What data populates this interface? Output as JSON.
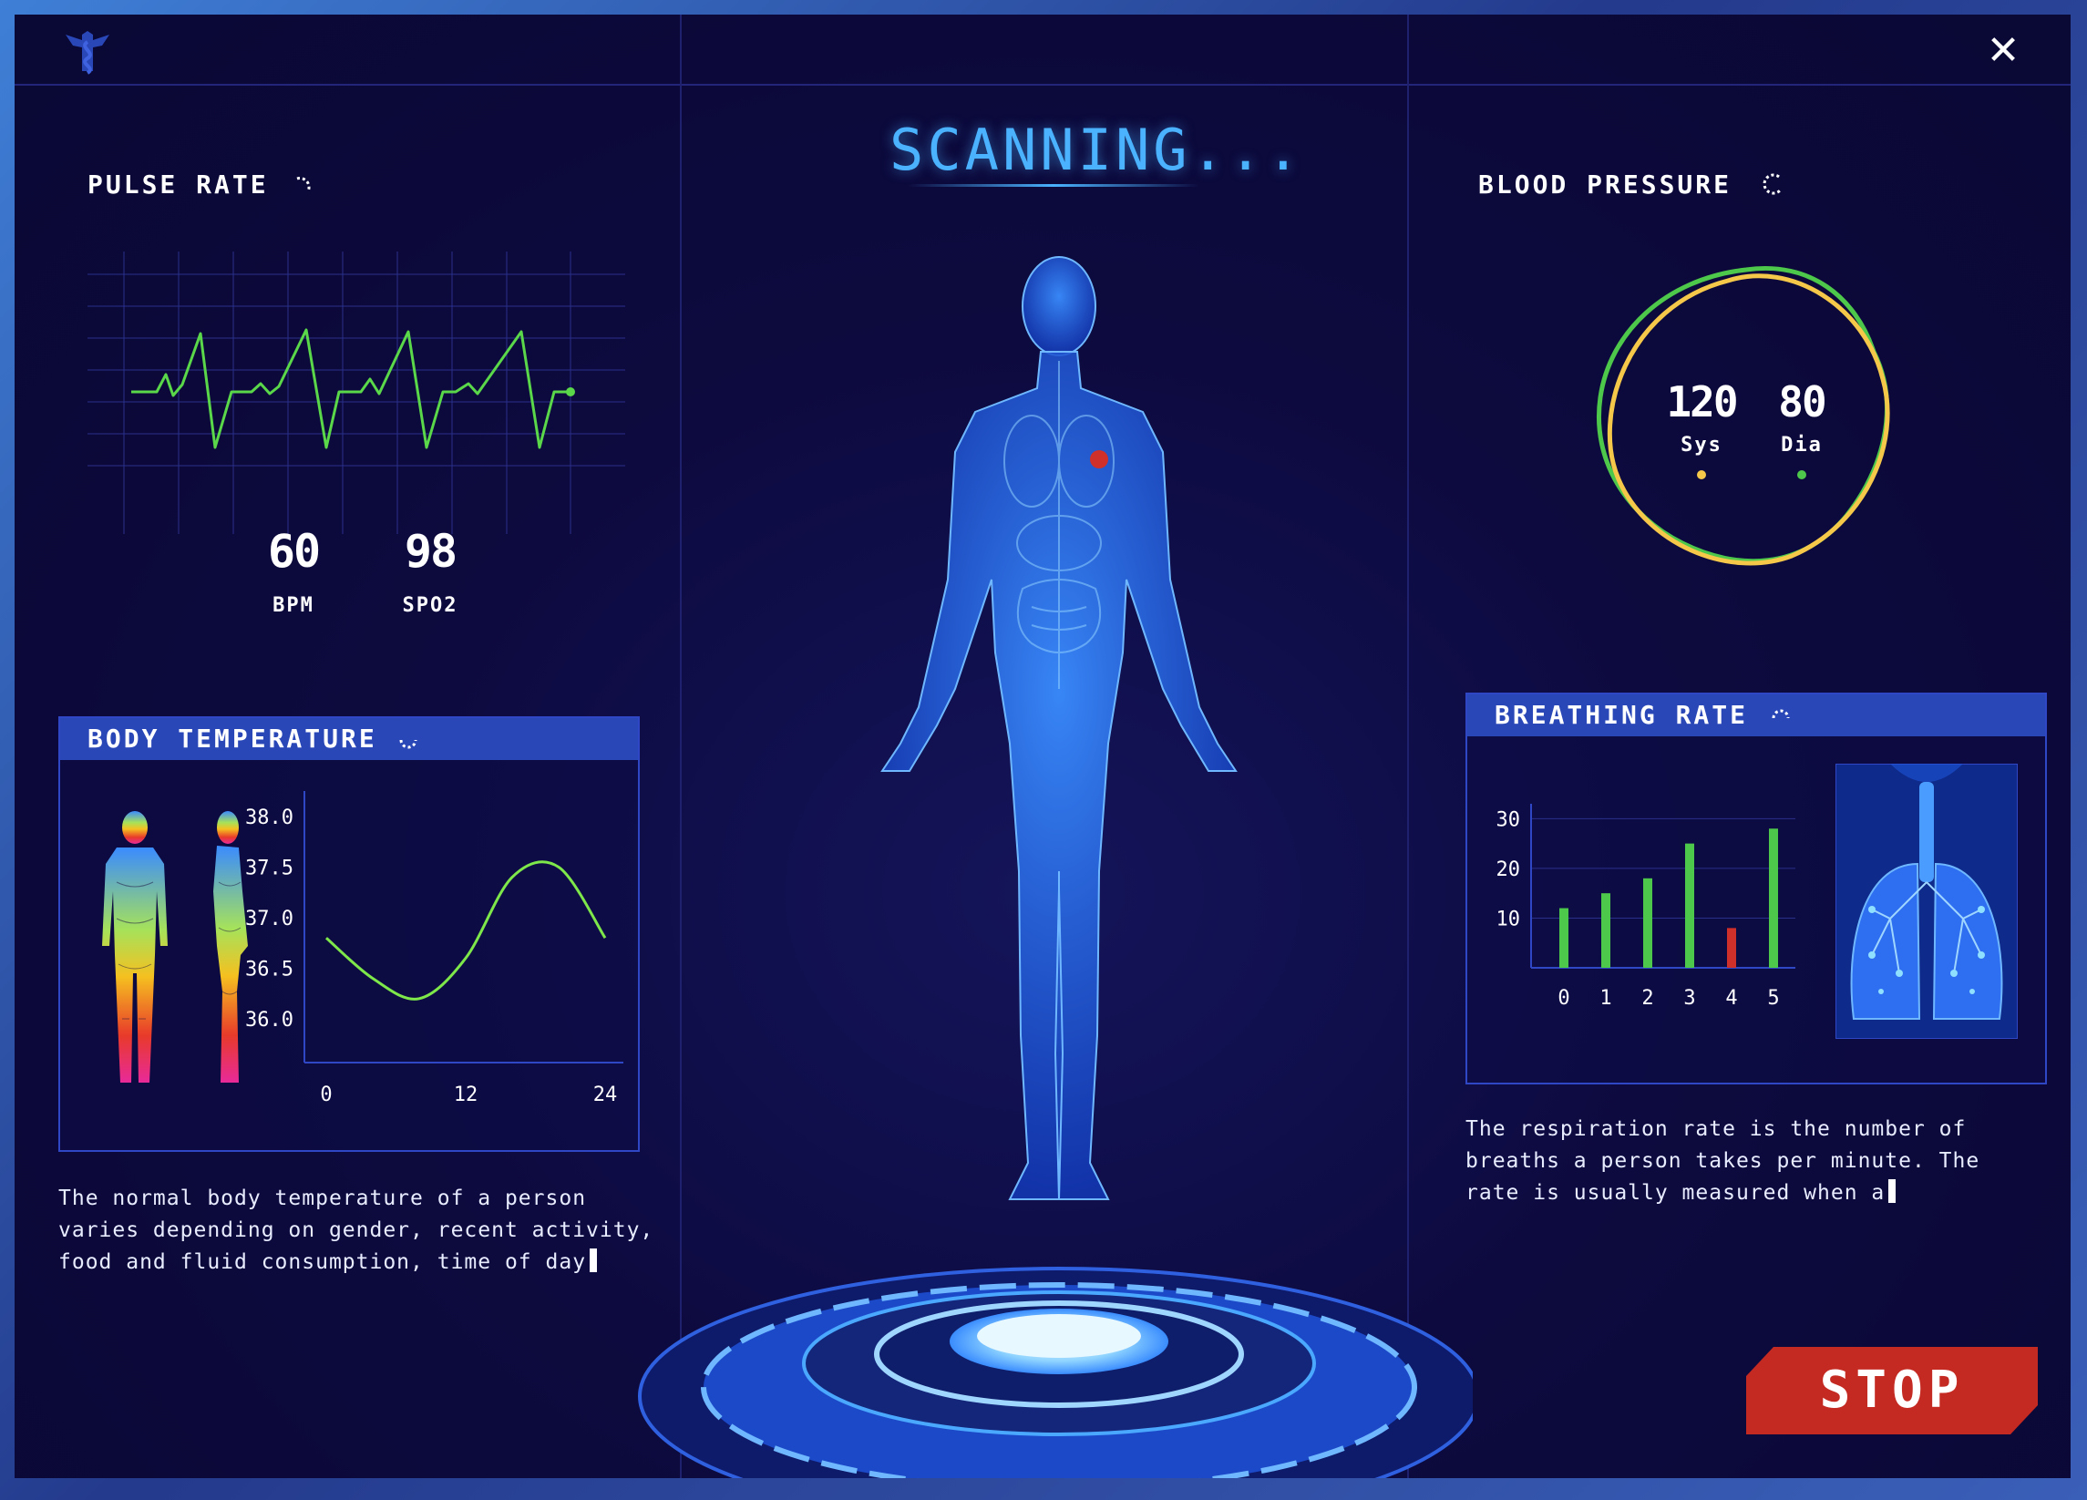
{
  "header": {
    "logo_icon": "caduceus-icon",
    "close_icon": "close-icon",
    "close_label": "✕"
  },
  "scan": {
    "status": "SCANNING..."
  },
  "pulse": {
    "title": "PULSE RATE",
    "bpm_value": "60",
    "bpm_label": "BPM",
    "spo2_value": "98",
    "spo2_label": "SPO2"
  },
  "temperature": {
    "title": "BODY TEMPERATURE",
    "y_ticks": [
      "38.0",
      "37.5",
      "37.0",
      "36.5",
      "36.0"
    ],
    "x_ticks": [
      "0",
      "12",
      "24"
    ],
    "description": "The normal body temperature of a person varies depending on gender, recent activity, food and fluid consumption, time of day"
  },
  "pressure": {
    "title": "BLOOD PRESSURE",
    "sys_value": "120",
    "sys_label": "Sys",
    "dia_value": "80",
    "dia_label": "Dia",
    "sys_color": "#f5c84a",
    "dia_color": "#4ec84a"
  },
  "breathing": {
    "title": "BREATHING RATE",
    "description": "The respiration rate is the number of breaths a person takes per minute. The rate is usually measured when a"
  },
  "stop": {
    "label": "STOP",
    "color": "#c42a22"
  },
  "chart_data": [
    {
      "type": "line",
      "x": [
        0,
        4,
        8,
        12,
        16,
        20,
        24
      ],
      "y": [
        36.8,
        36.4,
        36.2,
        36.6,
        37.4,
        37.5,
        36.8
      ],
      "xlabel": "",
      "ylabel": "",
      "x_ticks": [
        "0",
        "12",
        "24"
      ],
      "y_ticks": [
        "38.0",
        "37.5",
        "37.0",
        "36.5",
        "36.0"
      ],
      "xlim": [
        0,
        24
      ],
      "ylim": [
        36.0,
        38.0
      ],
      "grid": false,
      "color": "#7ee84a"
    },
    {
      "type": "bar",
      "categories": [
        "0",
        "1",
        "2",
        "3",
        "4",
        "5"
      ],
      "values": [
        12,
        15,
        18,
        25,
        8,
        28
      ],
      "colors": [
        "#4ec84a",
        "#4ec84a",
        "#4ec84a",
        "#4ec84a",
        "#d0302a",
        "#4ec84a"
      ],
      "y_ticks": [
        "30",
        "20",
        "10"
      ],
      "ylim": [
        0,
        33
      ],
      "grid": true
    }
  ]
}
